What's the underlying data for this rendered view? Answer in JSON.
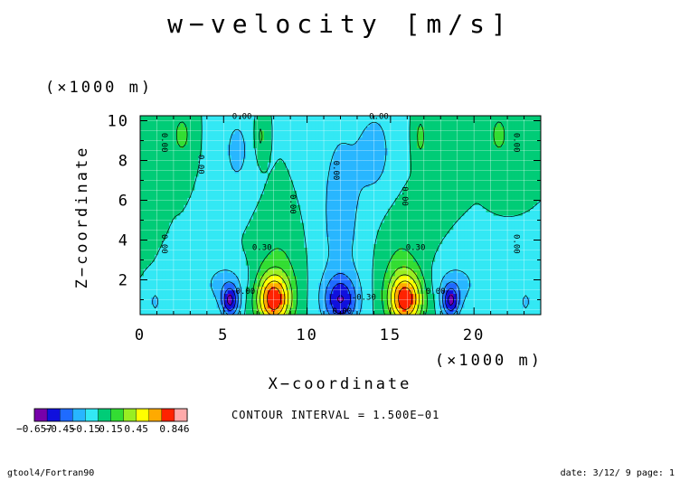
{
  "chart_data": {
    "type": "heatmap",
    "title": "w−velocity [m/s]",
    "xlabel": "X−coordinate",
    "ylabel": "Z−coordinate",
    "x_scale_label": "(×1000 m)",
    "y_scale_label": "(×1000 m)",
    "xlim": [
      0,
      24
    ],
    "ylim": [
      0.25,
      10.25
    ],
    "x_ticks": [
      "0",
      "5",
      "10",
      "15",
      "20"
    ],
    "x_tick_values": [
      0,
      5,
      10,
      15,
      20
    ],
    "y_ticks": [
      "2",
      "4",
      "6",
      "8",
      "10"
    ],
    "y_tick_values": [
      2,
      4,
      6,
      8,
      10
    ],
    "levels": [
      -0.657,
      -0.6,
      -0.45,
      -0.3,
      -0.15,
      0,
      0.15,
      0.3,
      0.45,
      0.6,
      0.75,
      0.846
    ],
    "colors": [
      "#7700aa",
      "#1010dd",
      "#1f6bff",
      "#28b6ff",
      "#33e8f4",
      "#00cc77",
      "#33dd33",
      "#99ee22",
      "#ffff00",
      "#ffaa00",
      "#ff2200",
      "#ffaaaa"
    ],
    "colorbar_labels": [
      "−0.657",
      "−0.45",
      "−0.15",
      "0.15",
      "0.45",
      "0.846"
    ],
    "contour_labels": [
      {
        "text": "0.00",
        "x": 6.1,
        "y": 10.1
      },
      {
        "text": "0.00",
        "x": 14.3,
        "y": 10.1
      },
      {
        "text": "0.00",
        "x": 1.3,
        "y": 8.9
      },
      {
        "text": "0.00",
        "x": 3.5,
        "y": 7.8
      },
      {
        "text": "0.00",
        "x": 9.0,
        "y": 5.8
      },
      {
        "text": "0.00",
        "x": 11.6,
        "y": 7.5
      },
      {
        "text": "0.00",
        "x": 15.7,
        "y": 6.2
      },
      {
        "text": "0.00",
        "x": 22.4,
        "y": 8.9
      },
      {
        "text": "0.00",
        "x": 1.3,
        "y": 3.8
      },
      {
        "text": "0.00",
        "x": 22.4,
        "y": 3.8
      },
      {
        "text": "0.30",
        "x": 7.3,
        "y": 3.5
      },
      {
        "text": "0.30",
        "x": 16.5,
        "y": 3.5
      },
      {
        "text": "0.00",
        "x": 12.1,
        "y": 0.3
      },
      {
        "text": "0.00",
        "x": 6.3,
        "y": 1.3
      },
      {
        "text": "0.00",
        "x": 17.7,
        "y": 1.3
      },
      {
        "text": "-0.30",
        "x": 13.4,
        "y": 1.0
      }
    ],
    "grid": true,
    "field_features": [
      {
        "x": 8.0,
        "z": 1.0,
        "sx": 1.0,
        "sz": 1.3,
        "amp": 0.8
      },
      {
        "x": 15.9,
        "z": 1.0,
        "sx": 1.0,
        "sz": 1.3,
        "amp": 0.8
      },
      {
        "x": 8.3,
        "z": 2.8,
        "sx": 1.4,
        "sz": 2.5,
        "amp": 0.15
      },
      {
        "x": 15.6,
        "z": 2.8,
        "sx": 1.4,
        "sz": 2.5,
        "amp": 0.15
      },
      {
        "x": 12.0,
        "z": 1.0,
        "sx": 1.0,
        "sz": 1.2,
        "amp": -0.5
      },
      {
        "x": 12.0,
        "z": 5.5,
        "sx": 1.6,
        "sz": 6.0,
        "amp": -0.2
      },
      {
        "x": 5.4,
        "z": 0.9,
        "sx": 0.5,
        "sz": 0.8,
        "amp": -0.55
      },
      {
        "x": 18.6,
        "z": 0.9,
        "sx": 0.5,
        "sz": 0.8,
        "amp": -0.55
      },
      {
        "x": 5.0,
        "z": 1.8,
        "sx": 1.4,
        "sz": 1.2,
        "amp": -0.2
      },
      {
        "x": 19.0,
        "z": 1.8,
        "sx": 1.4,
        "sz": 1.2,
        "amp": -0.2
      },
      {
        "x": 5.8,
        "z": 8.5,
        "sx": 1.1,
        "sz": 2.5,
        "amp": -0.18
      },
      {
        "x": 14.2,
        "z": 8.5,
        "sx": 1.1,
        "sz": 2.5,
        "amp": -0.18
      },
      {
        "x": 0.9,
        "z": 0.9,
        "sx": 0.3,
        "sz": 0.6,
        "amp": -0.2
      },
      {
        "x": 23.1,
        "z": 0.9,
        "sx": 0.3,
        "sz": 0.6,
        "amp": -0.2
      },
      {
        "x": 2.5,
        "z": 9.3,
        "sx": 0.6,
        "sz": 1.2,
        "amp": 0.2
      },
      {
        "x": 21.5,
        "z": 9.3,
        "sx": 0.6,
        "sz": 1.2,
        "amp": 0.2
      },
      {
        "x": 7.2,
        "z": 9.2,
        "sx": 0.35,
        "sz": 1.2,
        "amp": 0.2
      },
      {
        "x": 16.8,
        "z": 9.2,
        "sx": 0.35,
        "sz": 1.2,
        "amp": 0.2
      },
      {
        "x": 0.3,
        "z": 8.5,
        "sx": 0.6,
        "sz": 2.0,
        "amp": 0.05
      }
    ]
  },
  "contour_interval": "CONTOUR INTERVAL = 1.500E−01",
  "footer": {
    "left": "gtool4/Fortran90",
    "right": "date: 3/12/ 9 page: 1"
  }
}
